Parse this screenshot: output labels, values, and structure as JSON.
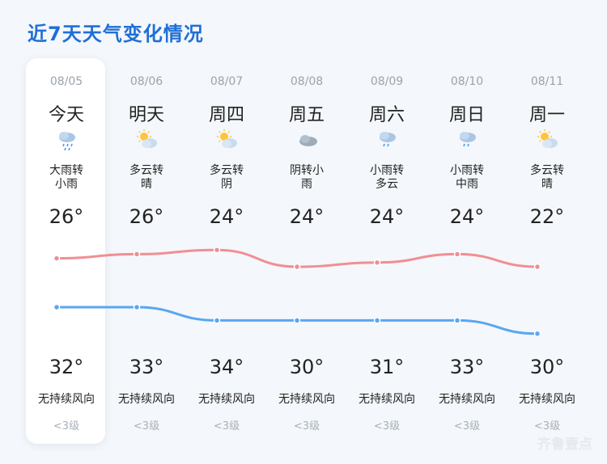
{
  "title": "近7天天气变化情况",
  "watermark": "齐鲁壹点",
  "colors": {
    "accent": "#1f6fd6",
    "warm": "#f08f93",
    "cool": "#5aa6f2"
  },
  "days": [
    {
      "date": "08/05",
      "day": "今天",
      "desc1": "大雨转",
      "desc2": "小雨",
      "low": "26°",
      "high": "32°",
      "wind": "无持续风向",
      "level": "<3级",
      "icon": "heavy-rain-icon",
      "t1": 26,
      "t2": 32
    },
    {
      "date": "08/06",
      "day": "明天",
      "desc1": "多云转",
      "desc2": "晴",
      "low": "26°",
      "high": "33°",
      "wind": "无持续风向",
      "level": "<3级",
      "icon": "partly-cloudy-icon",
      "t1": 26,
      "t2": 33
    },
    {
      "date": "08/07",
      "day": "周四",
      "desc1": "多云转",
      "desc2": "阴",
      "low": "24°",
      "high": "34°",
      "wind": "无持续风向",
      "level": "<3级",
      "icon": "partly-cloudy-icon",
      "t1": 24,
      "t2": 34
    },
    {
      "date": "08/08",
      "day": "周五",
      "desc1": "阴转小",
      "desc2": "雨",
      "low": "24°",
      "high": "30°",
      "wind": "无持续风向",
      "level": "<3级",
      "icon": "overcast-icon",
      "t1": 24,
      "t2": 30
    },
    {
      "date": "08/09",
      "day": "周六",
      "desc1": "小雨转",
      "desc2": "多云",
      "low": "24°",
      "high": "31°",
      "wind": "无持续风向",
      "level": "<3级",
      "icon": "light-rain-icon",
      "t1": 24,
      "t2": 31
    },
    {
      "date": "08/10",
      "day": "周日",
      "desc1": "小雨转",
      "desc2": "中雨",
      "low": "24°",
      "high": "33°",
      "wind": "无持续风向",
      "level": "<3级",
      "icon": "light-rain-icon",
      "t1": 24,
      "t2": 33
    },
    {
      "date": "08/11",
      "day": "周一",
      "desc1": "多云转",
      "desc2": "晴",
      "low": "22°",
      "high": "30°",
      "wind": "无持续风向",
      "level": "<3级",
      "icon": "partly-cloudy-icon",
      "t1": 22,
      "t2": 30
    }
  ]
}
